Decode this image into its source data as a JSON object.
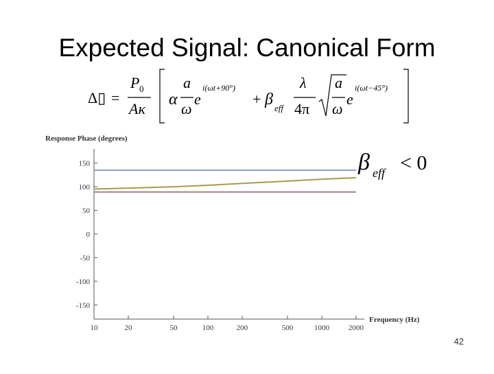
{
  "chart_data": {
    "type": "line",
    "title": "Expected Signal: Canonical Form",
    "y_label": "Response Phase (degrees)",
    "x_label": "Frequency (Hz)",
    "log_x": true,
    "xlim": [
      10,
      2000
    ],
    "xticks": [
      10,
      20,
      50,
      100,
      200,
      500,
      1000,
      2000
    ],
    "ylim": [
      -180,
      180
    ],
    "yticks": [
      150,
      100,
      50,
      0,
      -50,
      -100,
      -150
    ],
    "x": [
      10,
      20,
      50,
      100,
      200,
      500,
      1000,
      2000
    ],
    "series": [
      {
        "color": "#8a9ed2",
        "values": [
          135,
          135,
          135,
          135,
          135,
          135,
          135,
          135
        ]
      },
      {
        "color": "#a89a4e",
        "values": [
          95,
          97,
          100,
          103,
          107,
          112,
          116,
          119
        ]
      },
      {
        "color": "#a57f98",
        "values": [
          89,
          89,
          89,
          89,
          89,
          89,
          89,
          89
        ]
      }
    ]
  },
  "slide": {
    "equation": [
      "Δ▯",
      "=",
      "P",
      "0",
      "Aκ",
      "α",
      "a",
      "ω",
      "e",
      "i(ωt+90°)",
      "+",
      "β",
      "eff",
      "λ",
      "4π",
      "a",
      "ω",
      "e",
      "i(ωt−45°)"
    ],
    "annotation": {
      "symbol": "β",
      "subscript": "eff",
      "relation": "< 0"
    },
    "page_number": "42"
  }
}
